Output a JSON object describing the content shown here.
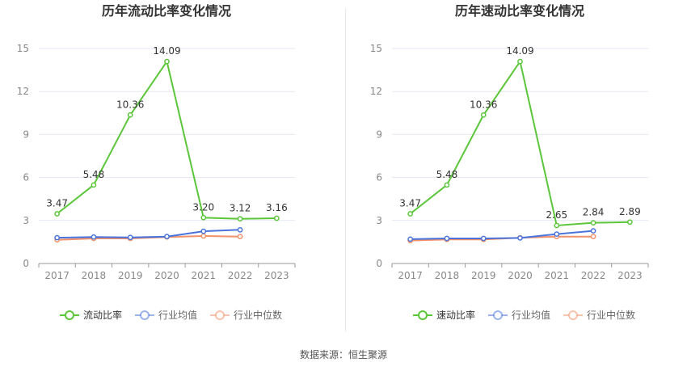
{
  "source_text": "数据来源：恒生聚源",
  "colors": {
    "main": "#5cc63b",
    "avg": "#4a74dc",
    "median": "#f0916a",
    "grid": "#e4e7ef",
    "axis": "#9a9a9a",
    "tick_text": "#888888",
    "label_text": "#333333",
    "title_text": "#333333"
  },
  "chart_data": [
    {
      "type": "line",
      "title": "历年流动比率变化情况",
      "categories": [
        "2017",
        "2018",
        "2019",
        "2020",
        "2021",
        "2022",
        "2023"
      ],
      "ylim": [
        0,
        15
      ],
      "yticks": [
        0,
        3,
        6,
        9,
        12,
        15
      ],
      "grid": true,
      "legend_position": "bottom",
      "series": [
        {
          "name": "流动比率",
          "values": [
            3.47,
            5.48,
            10.36,
            14.09,
            3.2,
            3.12,
            3.16
          ],
          "labels": [
            "3.47",
            "5.48",
            "10.36",
            "14.09",
            "3.20",
            "3.12",
            "3.16"
          ],
          "color": "#5cc63b"
        },
        {
          "name": "行业均值",
          "values": [
            1.8,
            1.85,
            1.82,
            1.88,
            2.25,
            2.35,
            null
          ],
          "color": "#4a74dc"
        },
        {
          "name": "行业中位数",
          "values": [
            1.65,
            1.75,
            1.75,
            1.85,
            1.92,
            1.88,
            null
          ],
          "color": "#f0916a"
        }
      ]
    },
    {
      "type": "line",
      "title": "历年速动比率变化情况",
      "categories": [
        "2017",
        "2018",
        "2019",
        "2020",
        "2021",
        "2022",
        "2023"
      ],
      "ylim": [
        0,
        15
      ],
      "yticks": [
        0,
        3,
        6,
        9,
        12,
        15
      ],
      "grid": true,
      "legend_position": "bottom",
      "series": [
        {
          "name": "速动比率",
          "values": [
            3.47,
            5.48,
            10.36,
            14.09,
            2.65,
            2.84,
            2.89
          ],
          "labels": [
            "3.47",
            "5.48",
            "10.36",
            "14.09",
            "2.65",
            "2.84",
            "2.89"
          ],
          "color": "#5cc63b"
        },
        {
          "name": "行业均值",
          "values": [
            1.7,
            1.75,
            1.75,
            1.78,
            2.05,
            2.28,
            null
          ],
          "color": "#4a74dc"
        },
        {
          "name": "行业中位数",
          "values": [
            1.6,
            1.68,
            1.68,
            1.8,
            1.88,
            1.88,
            null
          ],
          "color": "#f0916a"
        }
      ]
    }
  ]
}
